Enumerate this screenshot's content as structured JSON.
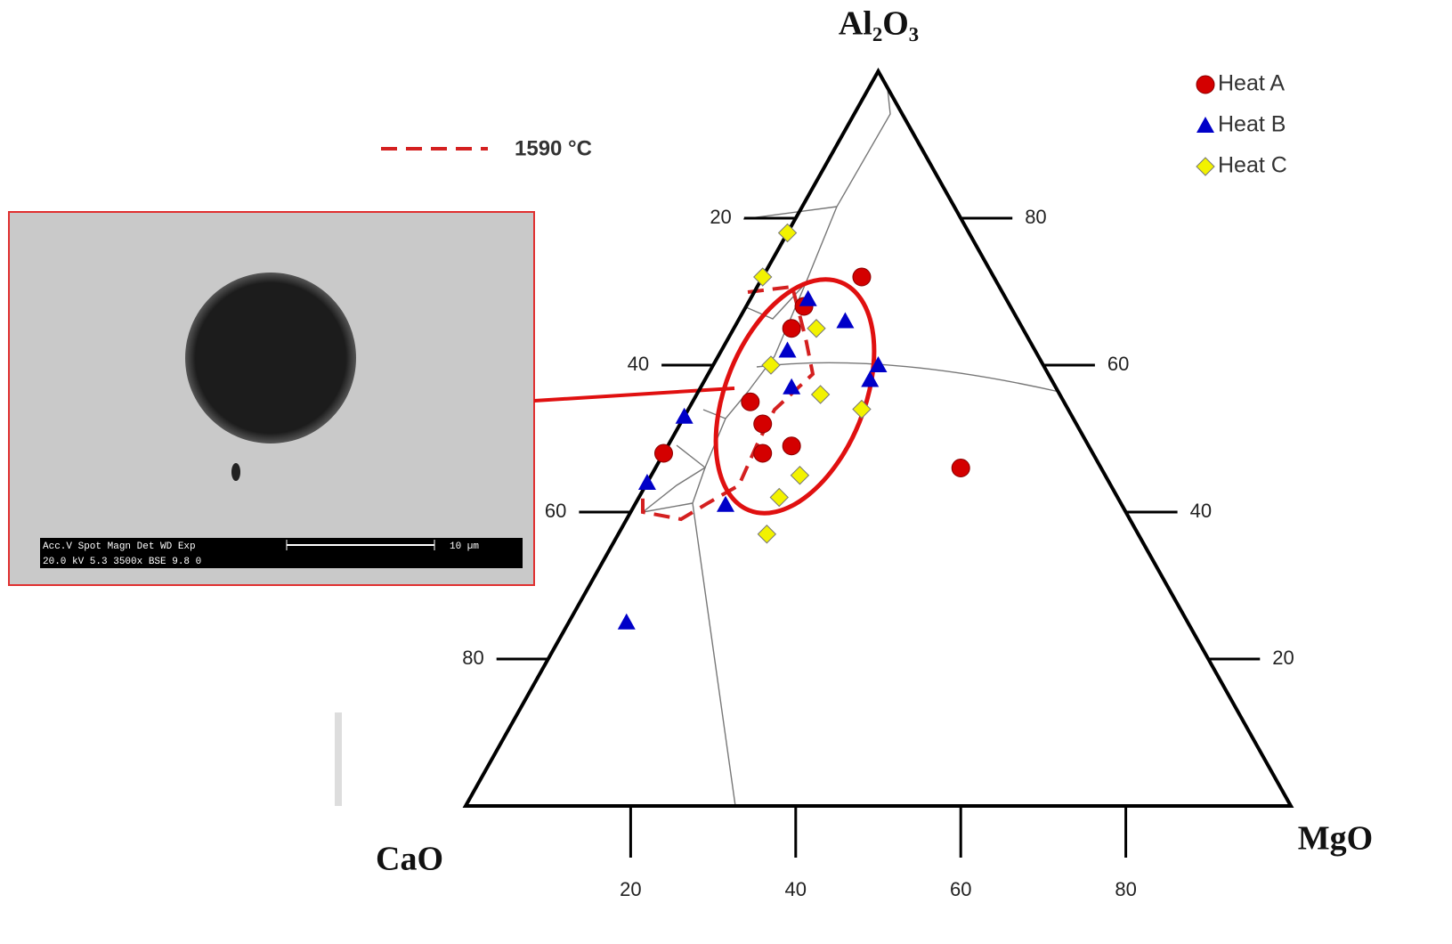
{
  "chart_data": {
    "type": "ternary",
    "apex_labels": {
      "top": "Al₂O₃",
      "left": "CaO",
      "right": "MgO"
    },
    "cao_ticks": [
      20,
      40,
      60,
      80
    ],
    "mgo_ticks": [
      20,
      40,
      60,
      80
    ],
    "al2o3_ticks": [
      20,
      40,
      60,
      80
    ],
    "isotherm_label": "1590 °C",
    "isotherm_color": "#d42020",
    "series": [
      {
        "name": "Heat A",
        "marker": "circle",
        "color": "#d40000",
        "al2o3": [
          72,
          65,
          68,
          55,
          52,
          48,
          49,
          48,
          46
        ],
        "mgo": [
          12,
          7,
          7,
          7,
          10,
          12,
          15,
          0,
          37
        ]
      },
      {
        "name": "Heat B",
        "marker": "triangle",
        "color": "#0000c8",
        "al2o3": [
          69,
          66,
          62,
          60,
          58,
          57,
          53,
          44,
          41,
          25
        ],
        "mgo": [
          7,
          13,
          8,
          20,
          20,
          11,
          0,
          0,
          11,
          7
        ]
      },
      {
        "name": "Heat C",
        "marker": "diamond",
        "color": "#f2f200",
        "al2o3": [
          78,
          72,
          65,
          60,
          56,
          54,
          45,
          42,
          37
        ],
        "mgo": [
          0,
          0,
          10,
          7,
          15,
          21,
          18,
          17,
          18
        ]
      }
    ],
    "inset": {
      "header": "Acc.V  Spot Magn    Det  WD  Exp",
      "settings": "20.0 kV 5.3  3500x   BSE  9.8   0",
      "scale": "10 µm"
    }
  }
}
